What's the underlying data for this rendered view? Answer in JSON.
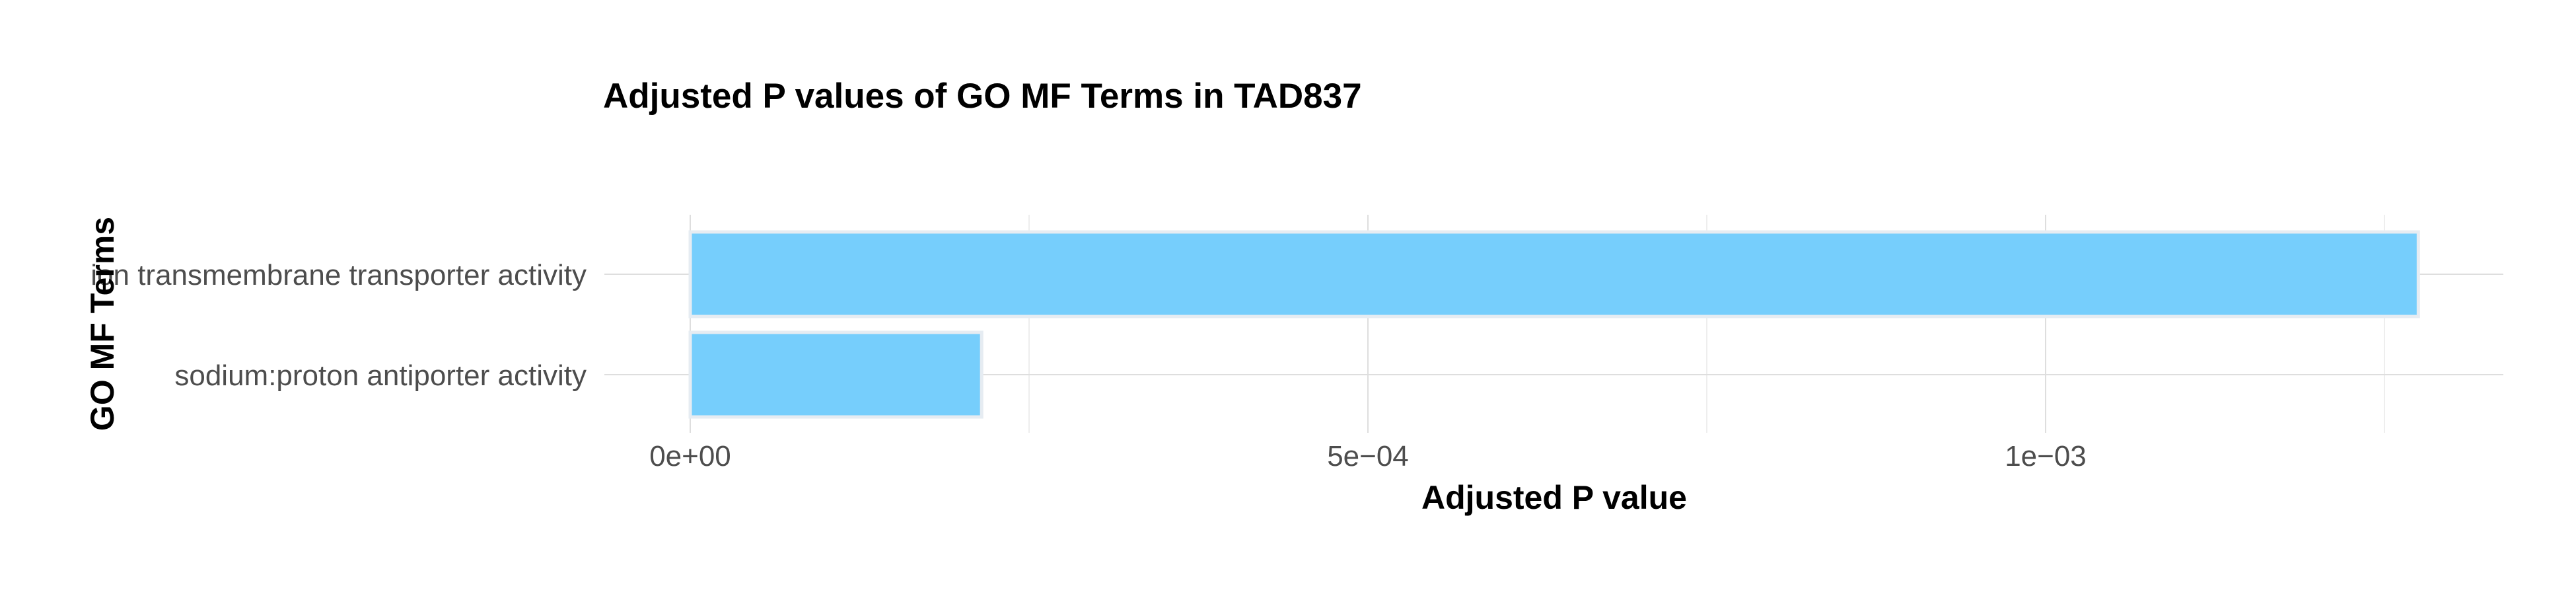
{
  "chart_data": {
    "type": "bar",
    "orientation": "horizontal",
    "title": "Adjusted P values of GO MF Terms in TAD837",
    "xlabel": "Adjusted P value",
    "ylabel": "GO MF Terms",
    "categories": [
      "ion transmembrane transporter activity",
      "sodium:proton antiporter activity"
    ],
    "values": [
      0.001275,
      0.000215
    ],
    "xlim": [
      0,
      0.00134
    ],
    "x_ticks": [
      {
        "value": 0,
        "label": "0e+00"
      },
      {
        "value": 0.0005,
        "label": "5e−04"
      },
      {
        "value": 0.001,
        "label": "1e−03"
      }
    ],
    "x_minor_gridlines": [
      0.00025,
      0.00075,
      0.00125
    ],
    "grid": true,
    "bar_color": "#76CEFC",
    "legend": "none"
  }
}
